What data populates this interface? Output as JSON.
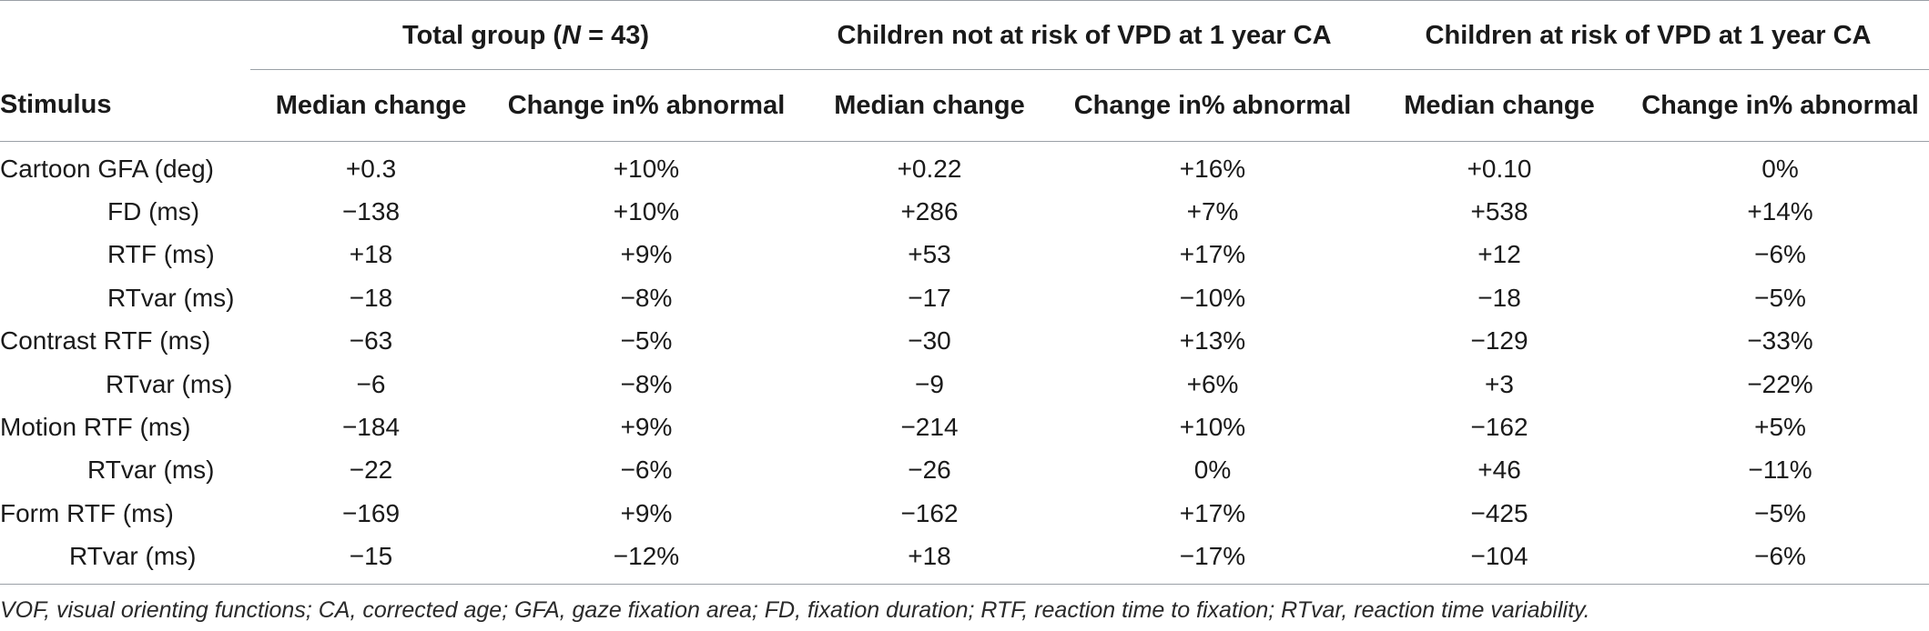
{
  "table": {
    "groups": {
      "total_prefix": "Total group (",
      "total_n": "N",
      "total_suffix": " = 43)",
      "not_at_risk": "Children not at risk of VPD at 1 year CA",
      "at_risk": "Children at risk of VPD at 1 year CA"
    },
    "subheaders": {
      "stimulus": "Stimulus",
      "median_change": "Median change",
      "change_abnormal": "Change in% abnormal"
    },
    "rows": [
      {
        "stimulus": "Cartoon GFA (deg)",
        "indent": 0,
        "cells": [
          "+0.3",
          "+10%",
          "+0.22",
          "+16%",
          "+0.10",
          "0%"
        ]
      },
      {
        "stimulus": "FD (ms)",
        "indent": 1,
        "cells": [
          "−138",
          "+10%",
          "+286",
          "+7%",
          "+538",
          "+14%"
        ]
      },
      {
        "stimulus": "RTF (ms)",
        "indent": 1,
        "cells": [
          "+18",
          "+9%",
          "+53",
          "+17%",
          "+12",
          "−6%"
        ]
      },
      {
        "stimulus": "RTvar (ms)",
        "indent": 1,
        "cells": [
          "−18",
          "−8%",
          "−17",
          "−10%",
          "−18",
          "−5%"
        ]
      },
      {
        "stimulus": "Contrast RTF (ms)",
        "indent": 0,
        "cells": [
          "−63",
          "−5%",
          "−30",
          "+13%",
          "−129",
          "−33%"
        ]
      },
      {
        "stimulus": "RTvar (ms)",
        "indent": 2,
        "cells": [
          "−6",
          "−8%",
          "−9",
          "+6%",
          "+3",
          "−22%"
        ]
      },
      {
        "stimulus": "Motion RTF (ms)",
        "indent": 0,
        "cells": [
          "−184",
          "+9%",
          "−214",
          "+10%",
          "−162",
          "+5%"
        ]
      },
      {
        "stimulus": "RTvar (ms)",
        "indent": 3,
        "cells": [
          "−22",
          "−6%",
          "−26",
          "0%",
          "+46",
          "−11%"
        ]
      },
      {
        "stimulus": "Form RTF (ms)",
        "indent": 0,
        "cells": [
          "−169",
          "+9%",
          "−162",
          "+17%",
          "−425",
          "−5%"
        ]
      },
      {
        "stimulus": "RTvar (ms)",
        "indent": 4,
        "cells": [
          "−15",
          "−12%",
          "+18",
          "−17%",
          "−104",
          "−6%"
        ]
      }
    ]
  },
  "footnote": "VOF, visual orienting functions; CA, corrected age; GFA, gaze fixation area; FD, fixation duration; RTF, reaction time to fixation; RTvar, reaction time variability."
}
